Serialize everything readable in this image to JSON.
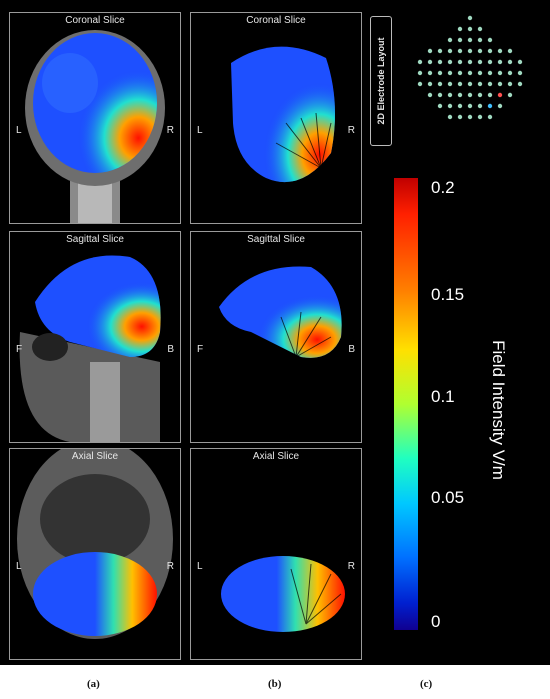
{
  "panels": {
    "a_coronal": {
      "title": "Coronal Slice",
      "left": "L",
      "right": "R"
    },
    "b_coronal": {
      "title": "Coronal Slice",
      "left": "L",
      "right": "R"
    },
    "a_sagittal": {
      "title": "Sagittal Slice",
      "left": "F",
      "right": "B"
    },
    "b_sagittal": {
      "title": "Sagittal Slice",
      "left": "F",
      "right": "B"
    },
    "a_axial": {
      "title": "Axial Slice",
      "left": "L",
      "right": "R"
    },
    "b_axial": {
      "title": "Axial Slice",
      "left": "L",
      "right": "R"
    }
  },
  "electrode_layout": {
    "label": "2D Electrode Layout"
  },
  "colorbar": {
    "title": "Field Intensity V/m",
    "ticks": [
      "0.2",
      "0.15",
      "0.1",
      "0.05",
      "0"
    ],
    "colors": [
      "#c00000",
      "#ff8000",
      "#ffe000",
      "#20ffc0",
      "#0070ff",
      "#100090"
    ]
  },
  "subfigure_labels": {
    "a": "(a)",
    "b": "(b)",
    "c": "(c)"
  }
}
